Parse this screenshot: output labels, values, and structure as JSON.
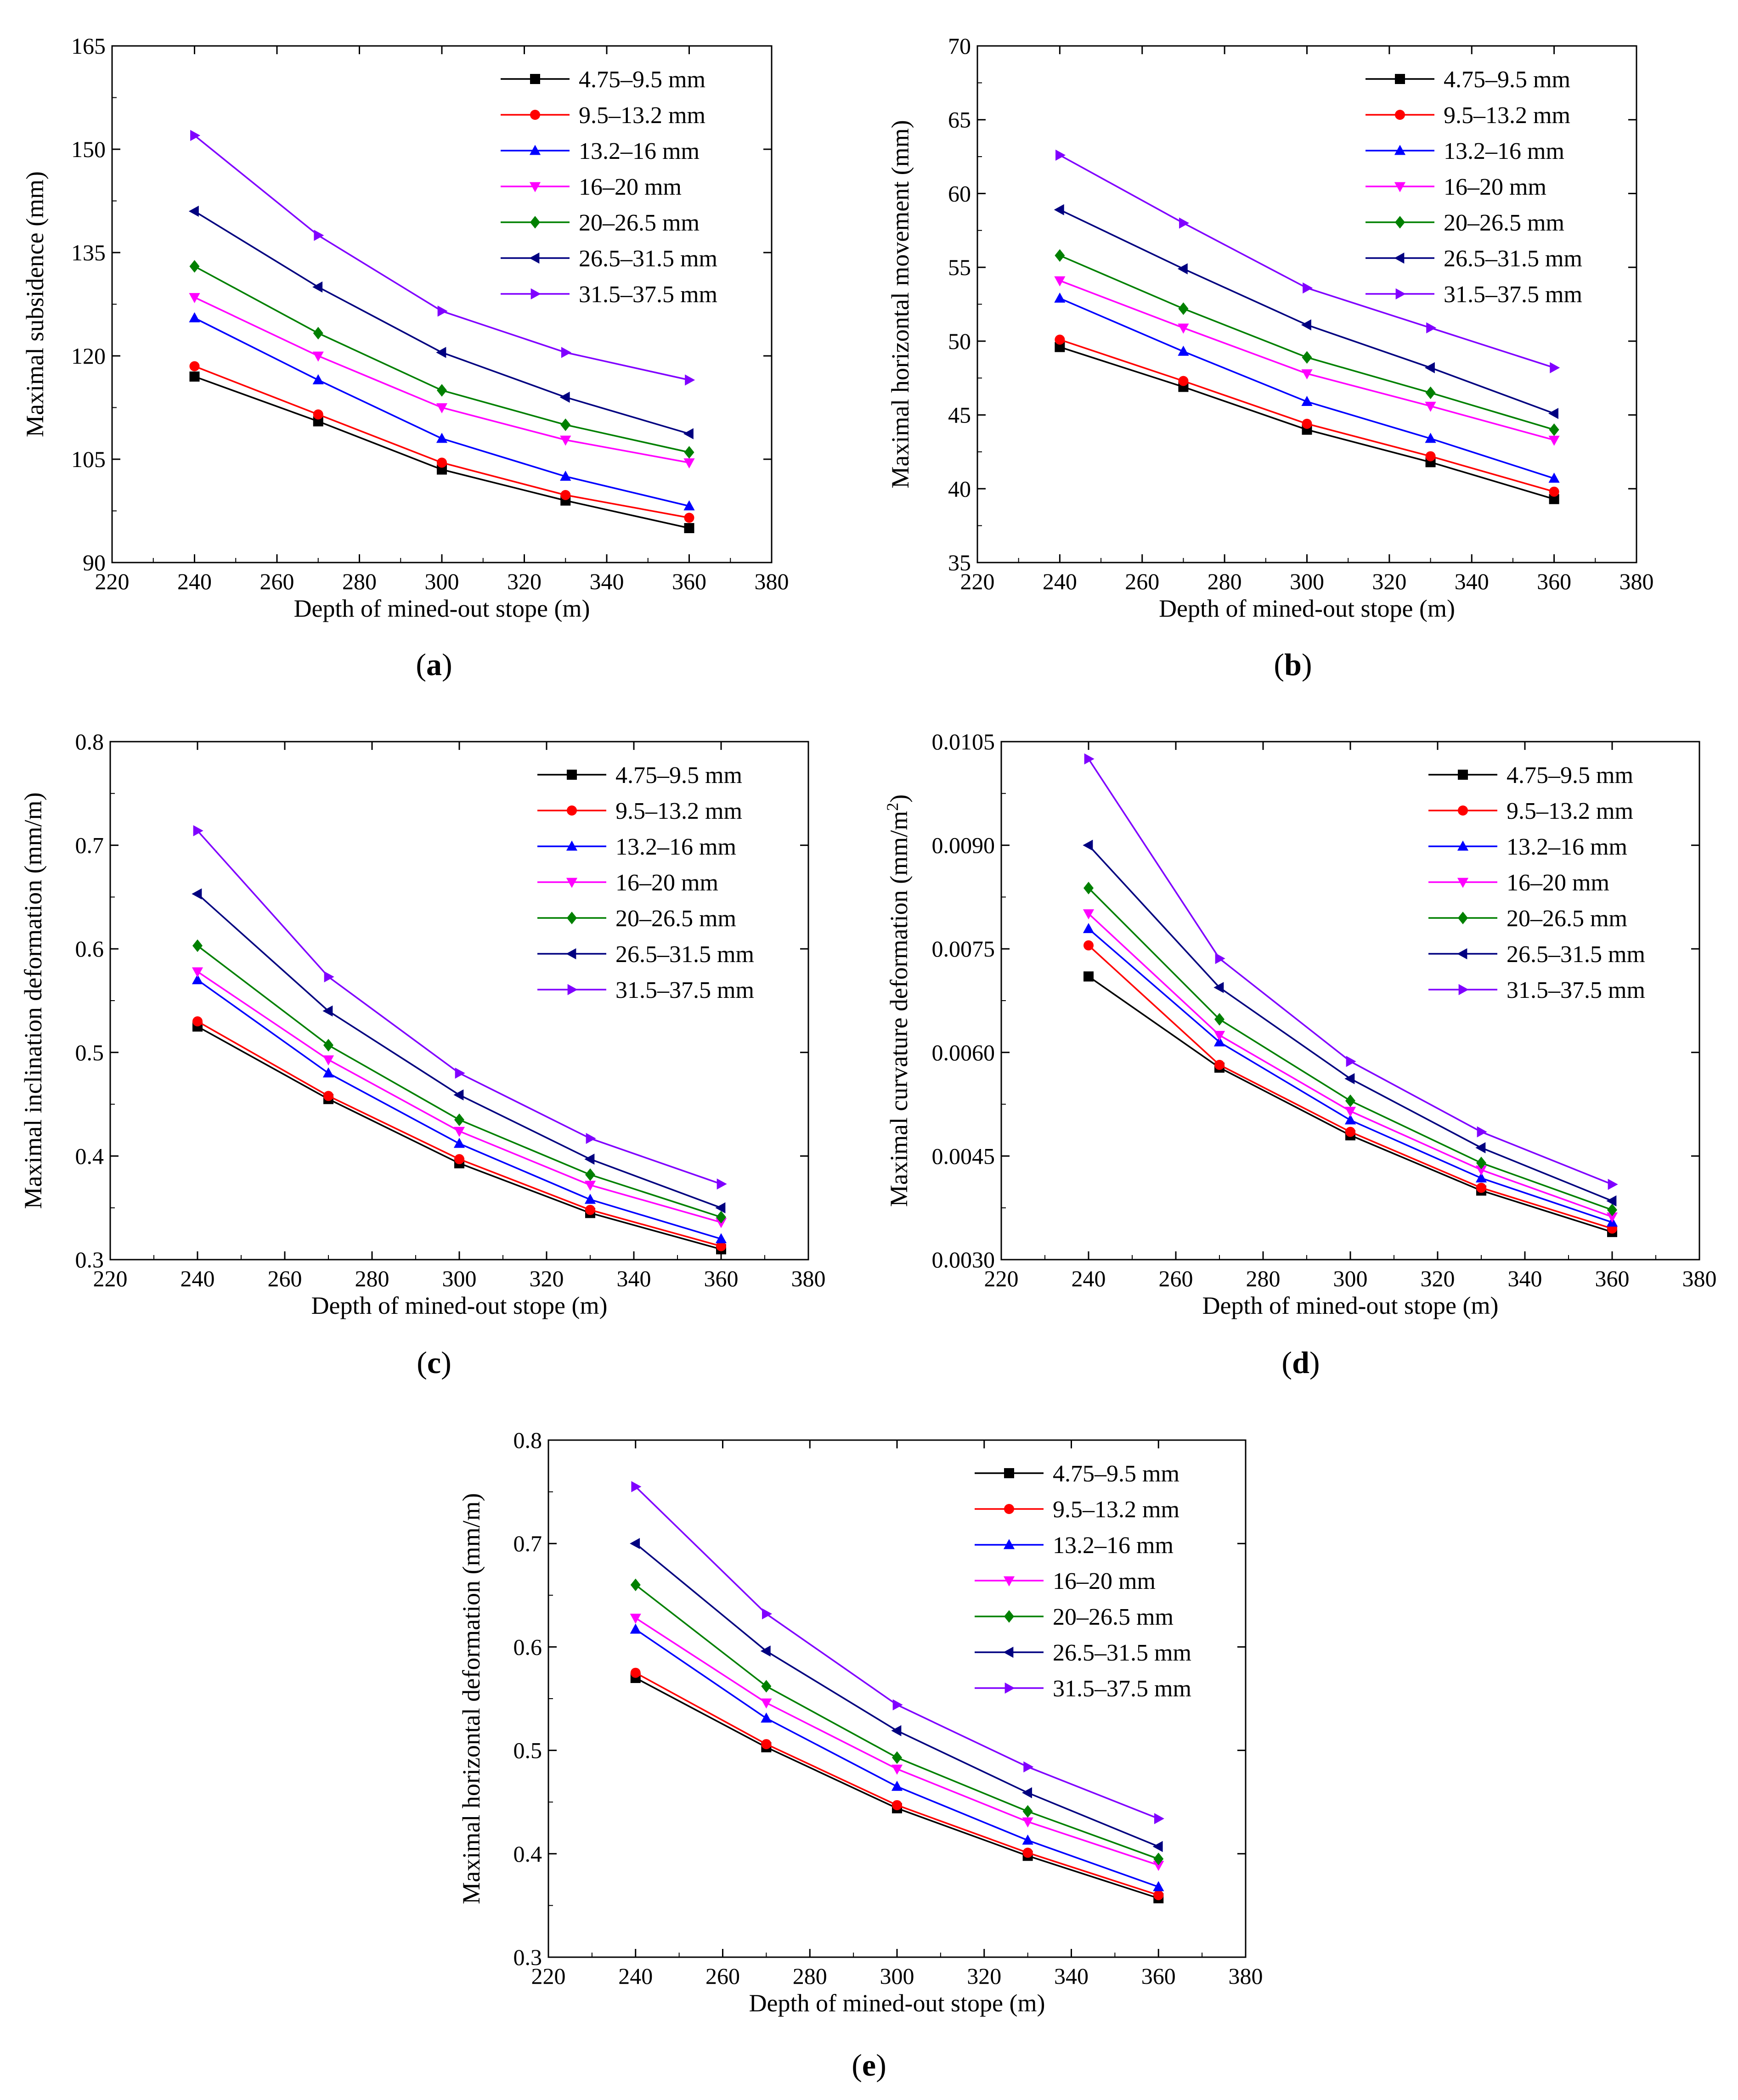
{
  "figure": {
    "series_names": [
      "4.75–9.5 mm",
      "9.5–13.2 mm",
      "13.2–16 mm",
      "16–20 mm",
      "20–26.5 mm",
      "26.5–31.5 mm",
      "31.5–37.5 mm"
    ],
    "series_colors": [
      "#000000",
      "#ff0000",
      "#0000ff",
      "#ff00ff",
      "#008000",
      "#000080",
      "#8000ff"
    ],
    "series_markers": [
      "square",
      "circle",
      "triangle-up",
      "triangle-down",
      "diamond",
      "triangle-left",
      "triangle-right"
    ]
  },
  "chart_data": [
    {
      "type": "line",
      "panel": "a",
      "caption_label": "a",
      "xlabel": "Depth of mined-out stope (m)",
      "ylabel": "Maximal subsidence (mm)",
      "xlim": [
        220,
        380
      ],
      "ylim": [
        90,
        165
      ],
      "xticks": [
        "220",
        "240",
        "260",
        "280",
        "300",
        "320",
        "340",
        "360",
        "380"
      ],
      "yticks": [
        "90",
        "105",
        "120",
        "135",
        "150",
        "165"
      ],
      "legend_position": "top-right",
      "x": [
        240,
        270,
        300,
        330,
        360
      ],
      "series": [
        {
          "name": "4.75–9.5 mm",
          "values": [
            117.0,
            110.5,
            103.5,
            99.0,
            95.0
          ]
        },
        {
          "name": "9.5–13.2 mm",
          "values": [
            118.5,
            111.5,
            104.5,
            99.8,
            96.5
          ]
        },
        {
          "name": "13.2–16 mm",
          "values": [
            125.5,
            116.5,
            108.0,
            102.5,
            98.2
          ]
        },
        {
          "name": "16–20 mm",
          "values": [
            128.5,
            120.0,
            112.5,
            107.8,
            104.5
          ]
        },
        {
          "name": "20–26.5 mm",
          "values": [
            133.0,
            123.3,
            115.0,
            110.0,
            106.0
          ]
        },
        {
          "name": "26.5–31.5 mm",
          "values": [
            141.0,
            130.0,
            120.5,
            114.0,
            108.7
          ]
        },
        {
          "name": "31.5–37.5 mm",
          "values": [
            152.0,
            137.5,
            126.5,
            120.5,
            116.5
          ]
        }
      ]
    },
    {
      "type": "line",
      "panel": "b",
      "caption_label": "b",
      "xlabel": "Depth of mined-out stope (m)",
      "ylabel": "Maximal horizontal movement (mm)",
      "xlim": [
        220,
        380
      ],
      "ylim": [
        35,
        70
      ],
      "xticks": [
        "220",
        "240",
        "260",
        "280",
        "300",
        "320",
        "340",
        "360",
        "380"
      ],
      "yticks": [
        "35",
        "40",
        "45",
        "50",
        "55",
        "60",
        "65",
        "70"
      ],
      "legend_position": "top-right",
      "x": [
        240,
        270,
        300,
        330,
        360
      ],
      "series": [
        {
          "name": "4.75–9.5 mm",
          "values": [
            49.6,
            46.9,
            44.0,
            41.8,
            39.3
          ]
        },
        {
          "name": "9.5–13.2 mm",
          "values": [
            50.1,
            47.3,
            44.4,
            42.2,
            39.8
          ]
        },
        {
          "name": "13.2–16 mm",
          "values": [
            52.9,
            49.3,
            45.9,
            43.4,
            40.7
          ]
        },
        {
          "name": "16–20 mm",
          "values": [
            54.1,
            50.9,
            47.8,
            45.6,
            43.3
          ]
        },
        {
          "name": "20–26.5 mm",
          "values": [
            55.8,
            52.2,
            48.9,
            46.5,
            44.0
          ]
        },
        {
          "name": "26.5–31.5 mm",
          "values": [
            58.9,
            54.9,
            51.1,
            48.2,
            45.1
          ]
        },
        {
          "name": "31.5–37.5 mm",
          "values": [
            62.6,
            58.0,
            53.6,
            50.9,
            48.2
          ]
        }
      ]
    },
    {
      "type": "line",
      "panel": "c",
      "caption_label": "c",
      "xlabel": "Depth of mined-out stope (m)",
      "ylabel": "Maximal inclination deformation (mm/m)",
      "xlim": [
        220,
        380
      ],
      "ylim": [
        0.3,
        0.8
      ],
      "xticks": [
        "220",
        "240",
        "260",
        "280",
        "300",
        "320",
        "340",
        "360",
        "380"
      ],
      "yticks": [
        "0.3",
        "0.4",
        "0.5",
        "0.6",
        "0.7",
        "0.8"
      ],
      "legend_position": "top-right",
      "x": [
        240,
        270,
        300,
        330,
        360
      ],
      "series": [
        {
          "name": "4.75–9.5 mm",
          "values": [
            0.525,
            0.455,
            0.393,
            0.345,
            0.31
          ]
        },
        {
          "name": "9.5–13.2 mm",
          "values": [
            0.53,
            0.458,
            0.397,
            0.348,
            0.313
          ]
        },
        {
          "name": "13.2–16 mm",
          "values": [
            0.57,
            0.48,
            0.412,
            0.358,
            0.32
          ]
        },
        {
          "name": "16–20 mm",
          "values": [
            0.578,
            0.493,
            0.424,
            0.372,
            0.336
          ]
        },
        {
          "name": "20–26.5 mm",
          "values": [
            0.603,
            0.507,
            0.435,
            0.382,
            0.341
          ]
        },
        {
          "name": "26.5–31.5 mm",
          "values": [
            0.653,
            0.54,
            0.459,
            0.397,
            0.35
          ]
        },
        {
          "name": "31.5–37.5 mm",
          "values": [
            0.714,
            0.573,
            0.48,
            0.417,
            0.373
          ]
        }
      ]
    },
    {
      "type": "line",
      "panel": "d",
      "caption_label": "d",
      "xlabel": "Depth of mined-out stope (m)",
      "ylabel": "Maximal curvature deformation (mm/m",
      "ylabel_superscript": "2",
      "ylabel_suffix": ")",
      "xlim": [
        220,
        380
      ],
      "ylim": [
        0.003,
        0.0105
      ],
      "xticks": [
        "220",
        "240",
        "260",
        "280",
        "300",
        "320",
        "340",
        "360",
        "380"
      ],
      "yticks": [
        "0.0030",
        "0.0045",
        "0.0060",
        "0.0075",
        "0.0090",
        "0.0105"
      ],
      "legend_position": "top-right",
      "x": [
        240,
        270,
        300,
        330,
        360
      ],
      "series": [
        {
          "name": "4.75–9.5 mm",
          "values": [
            0.0071,
            0.00578,
            0.0048,
            0.004,
            0.0034
          ]
        },
        {
          "name": "9.5–13.2 mm",
          "values": [
            0.00755,
            0.00582,
            0.00485,
            0.00404,
            0.00345
          ]
        },
        {
          "name": "13.2–16 mm",
          "values": [
            0.00779,
            0.00615,
            0.00502,
            0.00418,
            0.00354
          ]
        },
        {
          "name": "16–20 mm",
          "values": [
            0.00801,
            0.00625,
            0.00515,
            0.0043,
            0.00362
          ]
        },
        {
          "name": "20–26.5 mm",
          "values": [
            0.00838,
            0.00648,
            0.0053,
            0.0044,
            0.00372
          ]
        },
        {
          "name": "26.5–31.5 mm",
          "values": [
            0.009,
            0.00694,
            0.00562,
            0.00462,
            0.00385
          ]
        },
        {
          "name": "31.5–37.5 mm",
          "values": [
            0.01025,
            0.00736,
            0.00587,
            0.00485,
            0.00409
          ]
        }
      ]
    },
    {
      "type": "line",
      "panel": "e",
      "caption_label": "e",
      "xlabel": "Depth of mined-out stope (m)",
      "ylabel": "Maximal horizontal deformation (mm/m)",
      "xlim": [
        220,
        380
      ],
      "ylim": [
        0.3,
        0.8
      ],
      "xticks": [
        "220",
        "240",
        "260",
        "280",
        "300",
        "320",
        "340",
        "360",
        "380"
      ],
      "yticks": [
        "0.3",
        "0.4",
        "0.5",
        "0.6",
        "0.7",
        "0.8"
      ],
      "legend_position": "top-right",
      "x": [
        240,
        270,
        300,
        330,
        360
      ],
      "series": [
        {
          "name": "4.75–9.5 mm",
          "values": [
            0.57,
            0.503,
            0.444,
            0.398,
            0.357
          ]
        },
        {
          "name": "9.5–13.2 mm",
          "values": [
            0.575,
            0.506,
            0.447,
            0.401,
            0.36
          ]
        },
        {
          "name": "13.2–16 mm",
          "values": [
            0.617,
            0.531,
            0.465,
            0.413,
            0.368
          ]
        },
        {
          "name": "16–20 mm",
          "values": [
            0.628,
            0.546,
            0.482,
            0.431,
            0.389
          ]
        },
        {
          "name": "20–26.5 mm",
          "values": [
            0.66,
            0.562,
            0.493,
            0.441,
            0.395
          ]
        },
        {
          "name": "26.5–31.5 mm",
          "values": [
            0.7,
            0.596,
            0.519,
            0.459,
            0.407
          ]
        },
        {
          "name": "31.5–37.5 mm",
          "values": [
            0.755,
            0.632,
            0.544,
            0.484,
            0.434
          ]
        }
      ]
    }
  ]
}
